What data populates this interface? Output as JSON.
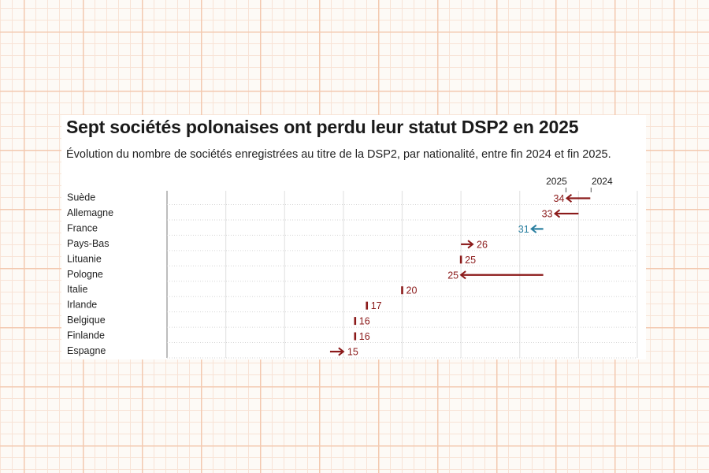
{
  "chart_data": {
    "type": "arrow-dot",
    "title": "Sept sociétés polonaises ont perdu leur statut DSP2 en 2025",
    "subtitle": "Évolution du nombre de sociétés enregistrées au titre de la DSP2, par nationalité, entre fin 2024 et fin 2025.",
    "legend": {
      "start_label": "2024",
      "end_label": "2025"
    },
    "x_range": [
      0,
      40
    ],
    "grid": true,
    "colors": {
      "decrease": "#8b1a1a",
      "increase": "#8b1a1a",
      "unchanged": "#8b1a1a",
      "highlight": "#2a7fa0"
    },
    "rows": [
      {
        "country": "Suède",
        "v2024": 36,
        "v2025": 34,
        "highlight": false
      },
      {
        "country": "Allemagne",
        "v2024": 35,
        "v2025": 33,
        "highlight": false
      },
      {
        "country": "France",
        "v2024": 32,
        "v2025": 31,
        "highlight": true
      },
      {
        "country": "Pays-Bas",
        "v2024": 25,
        "v2025": 26,
        "highlight": false
      },
      {
        "country": "Lituanie",
        "v2024": 25,
        "v2025": 25,
        "highlight": false
      },
      {
        "country": "Pologne",
        "v2024": 32,
        "v2025": 25,
        "highlight": false
      },
      {
        "country": "Italie",
        "v2024": 20,
        "v2025": 20,
        "highlight": false
      },
      {
        "country": "Irlande",
        "v2024": 17,
        "v2025": 17,
        "highlight": false
      },
      {
        "country": "Belgique",
        "v2024": 16,
        "v2025": 16,
        "highlight": false
      },
      {
        "country": "Finlande",
        "v2024": 16,
        "v2025": 16,
        "highlight": false
      },
      {
        "country": "Espagne",
        "v2024": 14,
        "v2025": 15,
        "highlight": false
      }
    ]
  }
}
